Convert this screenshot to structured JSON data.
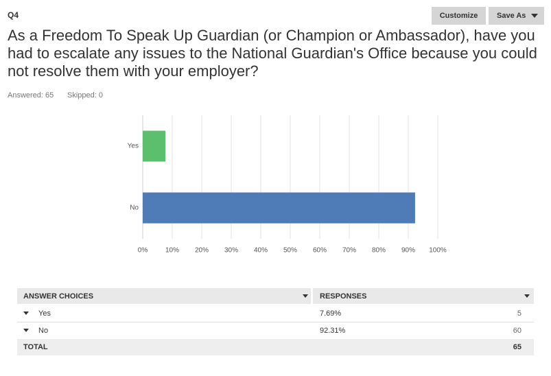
{
  "header": {
    "question_id": "Q4",
    "buttons": [
      "Customize",
      "Save As"
    ],
    "title": "As a Freedom To Speak Up Guardian (or Champion or Ambassador), have you had to escalate any issues to the National Guardian's Office because you could not resolve them with your employer?",
    "answered": "Answered: 65",
    "skipped": "Skipped: 0"
  },
  "chart_data": {
    "type": "hbar",
    "categories": [
      "Yes",
      "No"
    ],
    "values": [
      7.69,
      92.31
    ],
    "colors": [
      "#5cbf6e",
      "#4f7bb7"
    ],
    "xlim": [
      0,
      100
    ],
    "xticks": [
      {
        "value": 0,
        "label": "0%"
      },
      {
        "value": 10,
        "label": "10%"
      },
      {
        "value": 20,
        "label": "20%"
      },
      {
        "value": 30,
        "label": "30%"
      },
      {
        "value": 40,
        "label": "40%"
      },
      {
        "value": 50,
        "label": "50%"
      },
      {
        "value": 60,
        "label": "60%"
      },
      {
        "value": 70,
        "label": "70%"
      },
      {
        "value": 80,
        "label": "80%"
      },
      {
        "value": 90,
        "label": "90%"
      },
      {
        "value": 100,
        "label": "100%"
      }
    ],
    "grid": true
  },
  "table": {
    "headers": [
      "ANSWER CHOICES",
      "RESPONSES"
    ],
    "rows": [
      [
        "Yes",
        "7.69%",
        "5"
      ],
      [
        "No",
        "92.31%",
        "60"
      ]
    ],
    "total": [
      "TOTAL",
      "65"
    ]
  }
}
